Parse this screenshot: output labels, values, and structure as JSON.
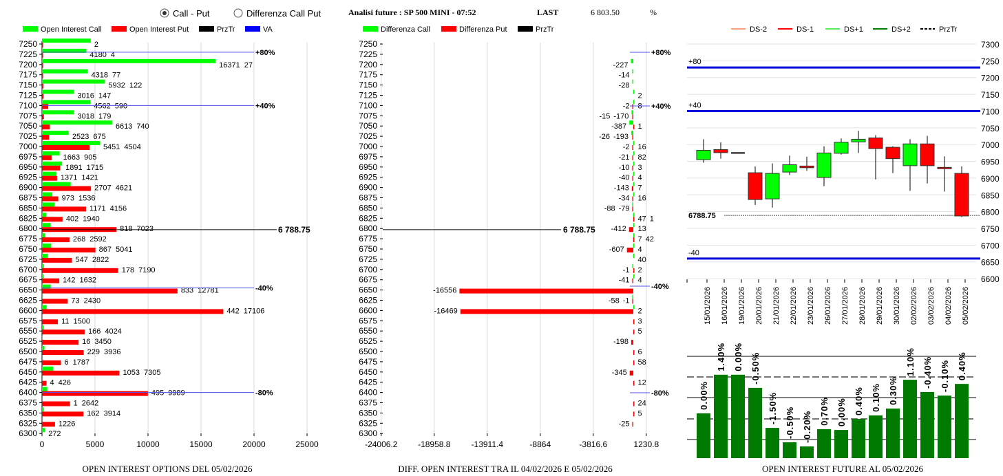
{
  "header": {
    "radio_options": [
      {
        "label": "Call - Put",
        "checked": true
      },
      {
        "label": "Differenza Call Put",
        "checked": false
      }
    ],
    "title": "Analisi future : SP 500 MINI - 07:52",
    "last_label": "LAST",
    "last_value": "6 803.50",
    "pct_label": "%"
  },
  "colors": {
    "call": "#00ff00",
    "put": "#ff0000",
    "prztr": "#000000",
    "va": "#0000ff",
    "oi_future": "#007a00"
  },
  "chart_data": [
    {
      "type": "bar",
      "orientation": "horizontal",
      "title": "OPEN INTEREST OPTIONS DEL 05/02/2026",
      "legend": [
        "Open Interest Call",
        "Open Interest Put",
        "PrzTr",
        "VA"
      ],
      "legend_placement": "top",
      "xlim": [
        0,
        25000
      ],
      "xticks": [
        "0",
        "5000",
        "10000",
        "15000",
        "20000",
        "25000"
      ],
      "strikes": [
        7250,
        7225,
        7200,
        7175,
        7150,
        7125,
        7100,
        7075,
        7050,
        7025,
        7000,
        6975,
        6950,
        6925,
        6900,
        6875,
        6850,
        6825,
        6800,
        6775,
        6750,
        6725,
        6700,
        6675,
        6650,
        6625,
        6600,
        6575,
        6550,
        6525,
        6500,
        6475,
        6450,
        6425,
        6400,
        6375,
        6350,
        6325,
        6300
      ],
      "call": [
        4600,
        4180,
        16371,
        4318,
        5932,
        3016,
        4562,
        3018,
        6613,
        2523,
        5451,
        1663,
        1891,
        1371,
        2707,
        973,
        1171,
        402,
        818,
        268,
        867,
        547,
        178,
        142,
        833,
        73,
        442,
        11,
        166,
        16,
        229,
        6,
        1053,
        4,
        495,
        1,
        162,
        null,
        272
      ],
      "call_label_hidden_strikes": [
        7250
      ],
      "put": [
        2,
        4,
        27,
        77,
        122,
        147,
        590,
        179,
        740,
        675,
        4504,
        905,
        1715,
        1421,
        4621,
        1536,
        4156,
        1940,
        7023,
        2592,
        5041,
        2822,
        7190,
        1632,
        12781,
        2430,
        17106,
        1500,
        4024,
        3450,
        3936,
        1787,
        7305,
        426,
        9989,
        2642,
        3914,
        1226,
        null
      ],
      "prztr": {
        "value": 6788.75,
        "label": "6 788.75"
      },
      "va_lines": [
        {
          "strike": 7230,
          "label": "+80%"
        },
        {
          "strike": 7100,
          "label": "+40%"
        },
        {
          "strike": 6655,
          "label": "-40%"
        },
        {
          "strike": 6400,
          "label": "-80%"
        }
      ]
    },
    {
      "type": "bar",
      "orientation": "horizontal",
      "title": "DIFF. OPEN INTEREST TRA IL 04/02/2026 E 05/02/2026",
      "legend": [
        "Differenza Call",
        "Differenza Put",
        "PrzTr"
      ],
      "legend_placement": "top",
      "xlim": [
        -24006.2,
        1230.8
      ],
      "xticks": [
        "-24006.2",
        "-18958.8",
        "-13911.4",
        "-8864",
        "-3816.6",
        "1230.8"
      ],
      "call_diff": [
        null,
        null,
        -227,
        -14,
        -28,
        2,
        8,
        -170,
        -387,
        -193,
        16,
        82,
        3,
        4,
        7,
        16,
        -79,
        47,
        13,
        7,
        4,
        40,
        -1,
        4,
        null,
        -1,
        2,
        null,
        null,
        null,
        null,
        null,
        null,
        null,
        null,
        null,
        null,
        null,
        null
      ],
      "put_diff": [
        null,
        null,
        null,
        null,
        null,
        null,
        -2,
        -15,
        1,
        -26,
        -2,
        -21,
        -10,
        -40,
        -143,
        -34,
        -88,
        1,
        -412,
        42,
        -607,
        null,
        2,
        -41,
        -16556,
        -58,
        -16469,
        3,
        5,
        -198,
        6,
        58,
        -345,
        12,
        null,
        24,
        5,
        -25,
        null
      ],
      "prztr": {
        "value": 6788.75,
        "label": "6 788.75"
      },
      "va_labels": [
        "+80%",
        "+40%",
        "-40%",
        "-80%"
      ]
    },
    {
      "type": "candlestick",
      "legend": [
        "DS-2",
        "DS-1",
        "DS+1",
        "DS+2",
        "PrzTr"
      ],
      "legend_placement": "top",
      "ylim": [
        6600,
        7300
      ],
      "yticks": [
        "7300",
        "7250",
        "7200",
        "7150",
        "7100",
        "7050",
        "7000",
        "6950",
        "6900",
        "6850",
        "6800",
        "6750",
        "6700",
        "6650",
        "6600"
      ],
      "dates": [
        "15/01/2026",
        "16/01/2026",
        "19/01/2026",
        "20/01/2026",
        "21/01/2026",
        "22/01/2026",
        "23/01/2026",
        "26/01/2026",
        "27/01/2026",
        "28/01/2026",
        "29/01/2026",
        "30/01/2026",
        "02/02/2026",
        "03/02/2026",
        "04/02/2026",
        "05/02/2026"
      ],
      "open": [
        6955,
        6985,
        6975,
        6916,
        6838,
        6918,
        6936,
        6902,
        6974,
        7008,
        7020,
        6992,
        6937,
        7002,
        6932,
        6914
      ],
      "high": [
        7016,
        7007,
        6975,
        6935,
        6944,
        6967,
        6964,
        6995,
        7018,
        7041,
        7028,
        6995,
        7016,
        7026,
        6965,
        6935
      ],
      "low": [
        6946,
        6958,
        6975,
        6820,
        6812,
        6909,
        6922,
        6876,
        6970,
        6975,
        6896,
        6915,
        6862,
        6884,
        6860,
        6784
      ],
      "close": [
        6983,
        6976,
        6975,
        6836,
        6914,
        6940,
        6931,
        6975,
        7007,
        7016,
        6988,
        6958,
        7002,
        6937,
        6928,
        6787
      ],
      "prztr": {
        "value": 6788.75,
        "label": "6788.75"
      },
      "va_lines": [
        {
          "value": 7230,
          "label": "+80"
        },
        {
          "value": 7100,
          "label": "+40"
        },
        {
          "value": 6660,
          "label": "-40"
        }
      ]
    },
    {
      "type": "bar",
      "title": "OPEN INTEREST FUTURE AL 05/02/2026",
      "categories": [
        "15/01/2026",
        "16/01/2026",
        "19/01/2026",
        "20/01/2026",
        "21/01/2026",
        "22/01/2026",
        "23/01/2026",
        "26/01/2026",
        "27/01/2026",
        "28/01/2026",
        "29/01/2026",
        "30/01/2026",
        "02/02/2026",
        "03/02/2026",
        "04/02/2026",
        "05/02/2026"
      ],
      "relative_level": [
        2.15,
        4.0,
        4.0,
        3.37,
        1.45,
        0.76,
        0.56,
        1.39,
        1.35,
        1.88,
        2.05,
        2.38,
        3.76,
        3.17,
        3.0,
        3.56
      ],
      "data_labels": [
        "0.00%",
        "1.40%",
        "0.00%",
        "-0.50%",
        "-1.50%",
        "-0.50%",
        "-0.20%",
        "0.70%",
        "0.00%",
        "0.40%",
        "0.10%",
        "0.30%",
        "1.10%",
        "-0.40%",
        "-0.10%",
        "0.40%"
      ],
      "ylim": [
        0,
        5
      ]
    }
  ]
}
